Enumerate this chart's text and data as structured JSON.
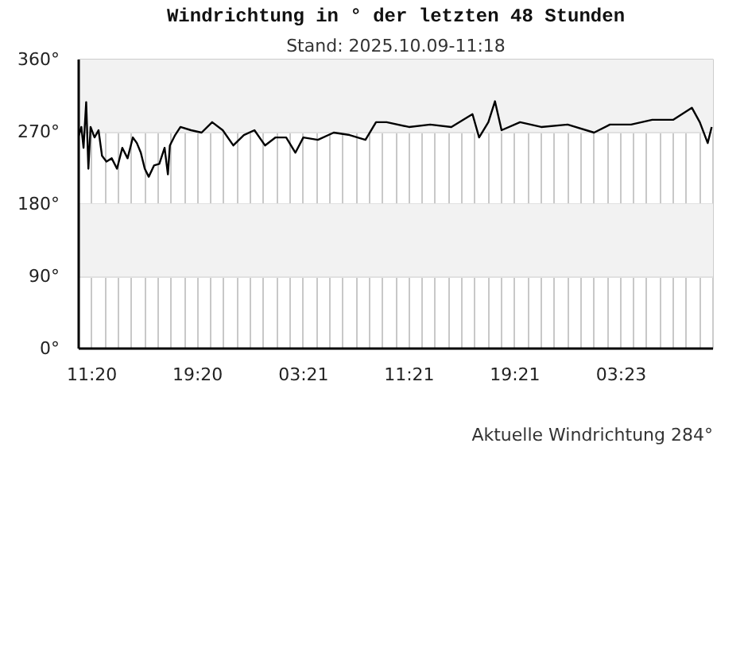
{
  "chart_data": {
    "type": "line",
    "title": "Windrichtung in ° der letzten 48 Stunden",
    "subtitle": "Stand: 2025.10.09-11:18",
    "annotations": [
      "Aktuelle Windrichtung 284°"
    ],
    "x": [
      "2025-10-07T10:20",
      "2025-10-07T10:32",
      "2025-10-07T10:42",
      "2025-10-07T10:54",
      "2025-10-07T11:04",
      "2025-10-07T11:14",
      "2025-10-07T11:32",
      "2025-10-07T11:50",
      "2025-10-07T12:06",
      "2025-10-07T12:26",
      "2025-10-07T12:50",
      "2025-10-07T13:14",
      "2025-10-07T13:38",
      "2025-10-07T14:02",
      "2025-10-07T14:26",
      "2025-10-07T14:44",
      "2025-10-07T15:02",
      "2025-10-07T15:20",
      "2025-10-07T15:38",
      "2025-10-07T16:02",
      "2025-10-07T16:26",
      "2025-10-07T16:50",
      "2025-10-07T17:05",
      "2025-10-07T17:14",
      "2025-10-07T17:38",
      "2025-10-07T18:02",
      "2025-10-07T18:50",
      "2025-10-07T19:38",
      "2025-10-07T20:26",
      "2025-10-07T21:14",
      "2025-10-07T22:02",
      "2025-10-07T22:50",
      "2025-10-07T23:38",
      "2025-10-08T00:26",
      "2025-10-08T01:14",
      "2025-10-08T02:02",
      "2025-10-08T02:44",
      "2025-10-08T03:20",
      "2025-10-08T04:26",
      "2025-10-08T05:38",
      "2025-10-08T06:50",
      "2025-10-08T08:02",
      "2025-10-08T08:50",
      "2025-10-08T09:38",
      "2025-10-08T11:20",
      "2025-10-08T12:56",
      "2025-10-08T14:32",
      "2025-10-08T16:08",
      "2025-10-08T16:38",
      "2025-10-08T17:20",
      "2025-10-08T17:50",
      "2025-10-08T18:20",
      "2025-10-08T19:44",
      "2025-10-08T21:20",
      "2025-10-08T23:20",
      "2025-10-09T01:20",
      "2025-10-09T02:32",
      "2025-10-09T04:08",
      "2025-10-09T05:44",
      "2025-10-09T07:20",
      "2025-10-09T08:44",
      "2025-10-09T09:20",
      "2025-10-09T09:56",
      "2025-10-09T10:14"
    ],
    "series": [
      {
        "color": "#000000",
        "values": [
          265,
          276,
          250,
          307,
          224,
          276,
          263,
          272,
          240,
          233,
          237,
          224,
          250,
          237,
          263,
          256,
          244,
          224,
          214,
          228,
          230,
          250,
          217,
          253,
          266,
          276,
          272,
          269,
          282,
          272,
          253,
          266,
          272,
          253,
          263,
          263,
          244,
          263,
          260,
          269,
          266,
          260,
          282,
          282,
          276,
          279,
          276,
          292,
          263,
          282,
          308,
          272,
          282,
          276,
          279,
          269,
          279,
          279,
          285,
          285,
          300,
          282,
          256,
          276
        ]
      }
    ],
    "xlim": [
      "2025-10-07T10:20",
      "2025-10-09T10:20"
    ],
    "xticks": [
      {
        "value": "2025-10-07T11:20",
        "label": "11:20"
      },
      {
        "value": "2025-10-07T12:20",
        "label": null
      },
      {
        "value": "2025-10-07T13:20",
        "label": null
      },
      {
        "value": "2025-10-07T14:20",
        "label": null
      },
      {
        "value": "2025-10-07T15:20",
        "label": null
      },
      {
        "value": "2025-10-07T16:20",
        "label": null
      },
      {
        "value": "2025-10-07T17:20",
        "label": null
      },
      {
        "value": "2025-10-07T18:20",
        "label": null
      },
      {
        "value": "2025-10-07T19:20",
        "label": "19:20"
      },
      {
        "value": "2025-10-07T20:20",
        "label": null
      },
      {
        "value": "2025-10-07T21:20",
        "label": null
      },
      {
        "value": "2025-10-07T22:20",
        "label": null
      },
      {
        "value": "2025-10-07T23:20",
        "label": null
      },
      {
        "value": "2025-10-08T00:20",
        "label": null
      },
      {
        "value": "2025-10-08T01:20",
        "label": null
      },
      {
        "value": "2025-10-08T02:20",
        "label": null
      },
      {
        "value": "2025-10-08T03:21",
        "label": "03:21"
      },
      {
        "value": "2025-10-08T04:20",
        "label": null
      },
      {
        "value": "2025-10-08T05:20",
        "label": null
      },
      {
        "value": "2025-10-08T06:20",
        "label": null
      },
      {
        "value": "2025-10-08T07:20",
        "label": null
      },
      {
        "value": "2025-10-08T08:20",
        "label": null
      },
      {
        "value": "2025-10-08T09:20",
        "label": null
      },
      {
        "value": "2025-10-08T10:20",
        "label": null
      },
      {
        "value": "2025-10-08T11:21",
        "label": "11:21"
      },
      {
        "value": "2025-10-08T12:20",
        "label": null
      },
      {
        "value": "2025-10-08T13:20",
        "label": null
      },
      {
        "value": "2025-10-08T14:20",
        "label": null
      },
      {
        "value": "2025-10-08T15:20",
        "label": null
      },
      {
        "value": "2025-10-08T16:20",
        "label": null
      },
      {
        "value": "2025-10-08T17:20",
        "label": null
      },
      {
        "value": "2025-10-08T18:20",
        "label": null
      },
      {
        "value": "2025-10-08T19:21",
        "label": "19:21"
      },
      {
        "value": "2025-10-08T20:20",
        "label": null
      },
      {
        "value": "2025-10-08T21:20",
        "label": null
      },
      {
        "value": "2025-10-08T22:20",
        "label": null
      },
      {
        "value": "2025-10-08T23:20",
        "label": null
      },
      {
        "value": "2025-10-09T00:20",
        "label": null
      },
      {
        "value": "2025-10-09T01:20",
        "label": null
      },
      {
        "value": "2025-10-09T02:20",
        "label": null
      },
      {
        "value": "2025-10-09T03:23",
        "label": "03:23"
      },
      {
        "value": "2025-10-09T04:20",
        "label": null
      },
      {
        "value": "2025-10-09T05:20",
        "label": null
      },
      {
        "value": "2025-10-09T06:20",
        "label": null
      },
      {
        "value": "2025-10-09T07:20",
        "label": null
      },
      {
        "value": "2025-10-09T08:20",
        "label": null
      },
      {
        "value": "2025-10-09T09:20",
        "label": null
      }
    ],
    "ylim": [
      0,
      360
    ],
    "yticks": [
      {
        "value": 0,
        "label": "0°"
      },
      {
        "value": 90,
        "label": "90°"
      },
      {
        "value": 180,
        "label": "180°"
      },
      {
        "value": 270,
        "label": "270°"
      },
      {
        "value": 360,
        "label": "360°"
      }
    ],
    "bands": [
      {
        "axis": "y",
        "from": 90,
        "to": 180,
        "color": "#f2f2f2"
      },
      {
        "axis": "y",
        "from": 270,
        "to": 360,
        "color": "#f2f2f2"
      }
    ],
    "grid": true,
    "marker": "none",
    "line_style": "solid"
  }
}
